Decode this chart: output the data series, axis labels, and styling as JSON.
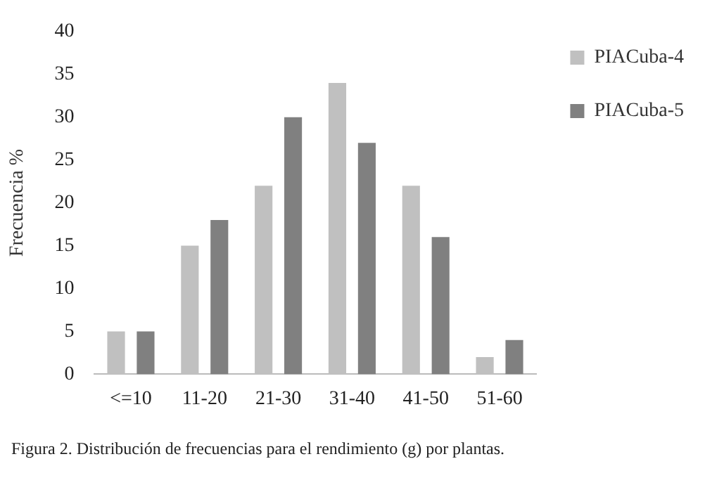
{
  "chart_data": {
    "type": "bar",
    "ylabel": "Frecuencia %",
    "categories": [
      "<=10",
      "11-20",
      "21-30",
      "31-40",
      "41-50",
      "51-60"
    ],
    "series": [
      {
        "name": "PIACuba-4",
        "color": "#c0c0c0",
        "values": [
          5,
          15,
          22,
          34,
          22,
          2
        ]
      },
      {
        "name": "PIACuba-5",
        "color": "#808080",
        "values": [
          5,
          18,
          30,
          27,
          16,
          4
        ]
      }
    ],
    "ylim": [
      0,
      40
    ],
    "yticks": [
      0,
      5,
      10,
      15,
      20,
      25,
      30,
      35,
      40
    ],
    "grid": false,
    "legend": "right",
    "annotations": [
      "Figura 2. Distribución de frecuencias para el rendimiento (g) por plantas."
    ]
  }
}
